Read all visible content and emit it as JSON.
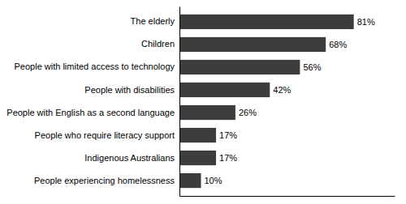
{
  "chart_data": {
    "type": "bar",
    "orientation": "horizontal",
    "categories": [
      "People experiencing homelessness",
      "Indigenous Australians",
      "People who require literacy support",
      "People with English as a second language",
      "People with disabilities",
      "People with limited access to technology",
      "Children",
      "The elderly"
    ],
    "values": [
      10,
      17,
      17,
      26,
      42,
      56,
      68,
      81
    ],
    "value_labels": [
      "10%",
      "17%",
      "17%",
      "26%",
      "42%",
      "56%",
      "68%",
      "81%"
    ],
    "color": "#3d3d3d",
    "xlim": [
      0,
      100
    ],
    "data_labels": true,
    "tick_labels": "y",
    "grid": false
  }
}
